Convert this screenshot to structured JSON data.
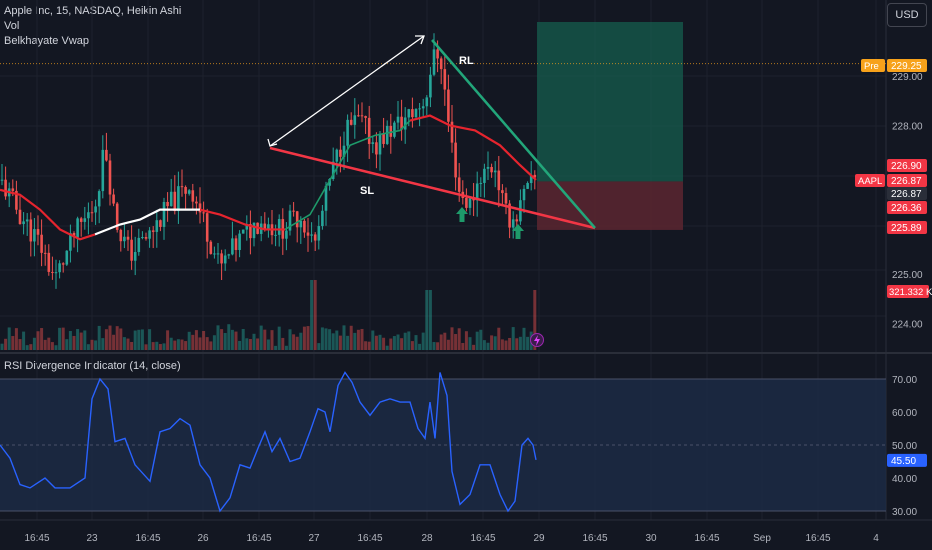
{
  "legend": {
    "symbol_line": "Apple Inc, 15, NASDAQ, Heikin Ashi",
    "volume_label": "Vol",
    "indicator_label": "Belkhayate Vwap"
  },
  "currency_button": "USD",
  "rsi_legend": "RSI Divergence Indicator (14, close)",
  "annotations": {
    "rl": "RL",
    "sl": "SL"
  },
  "colors": {
    "background": "#131722",
    "up": "#26a69a",
    "down": "#ef5350",
    "vwap_red": "#e6242e",
    "vwap_green": "#1e9a6a",
    "vwap_white": "#ffffff",
    "rsi_line": "#2962ff",
    "rsi_band": "#1c2a44",
    "triangle_green": "#22a67a",
    "triangle_red": "#f23645",
    "arrow": "#1e9a6a",
    "premarket": "#f7a21b",
    "tp_zone": "#155e4e",
    "sl_zone": "#5c2630"
  },
  "chart_data": [
    {
      "type": "candlestick",
      "title": "Apple Inc, 15, NASDAQ, Heikin Ashi",
      "ylim": [
        223.6,
        229.9
      ],
      "y_ticks": [
        "229.00",
        "228.00",
        "225.00",
        "224.00"
      ],
      "x_ticks": [
        "16:45",
        "23",
        "16:45",
        "26",
        "16:45",
        "27",
        "16:45",
        "28",
        "16:45",
        "29",
        "16:45",
        "30",
        "16:45",
        "Sep",
        "16:45",
        "4"
      ],
      "price_labels": [
        {
          "label": "Pre",
          "value": "229.25",
          "color": "#f7a21b"
        },
        {
          "label": "",
          "value": "226.90",
          "color": "#f23645"
        },
        {
          "label": "AAPL",
          "value": "226.87",
          "color": "#f23645"
        },
        {
          "label": "",
          "value": "226.87",
          "color": "#2a2e39"
        },
        {
          "label": "",
          "value": "226.36",
          "color": "#f23645"
        },
        {
          "label": "",
          "value": "225.89",
          "color": "#f23645"
        }
      ],
      "volume_label": "321.332 K",
      "long_position": {
        "entry": 226.87,
        "target": 229.9,
        "stop": 225.89
      },
      "annotations": [
        "RL",
        "SL"
      ]
    },
    {
      "type": "line",
      "title": "RSI Divergence Indicator (14, close)",
      "ylim": [
        27,
        73
      ],
      "y_ticks": [
        "70.00",
        "60.00",
        "50.00",
        "40.00",
        "30.00"
      ],
      "band": [
        30,
        70
      ],
      "midline": 50,
      "last_value": "45.50"
    }
  ]
}
